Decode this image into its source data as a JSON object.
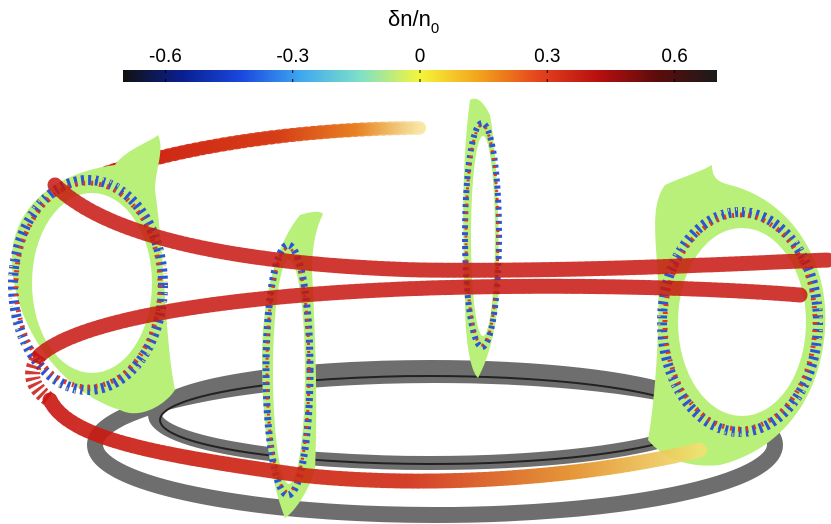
{
  "chart_data": {
    "type": "heatmap",
    "colorbar": {
      "title_main": "δn/n",
      "title_sub": "0",
      "range": [
        -0.7,
        0.7
      ],
      "ticks": [
        -0.6,
        -0.3,
        0,
        0.3,
        0.6
      ],
      "tick_labels": [
        "-0.6",
        "-0.3",
        "0",
        "0.3",
        "0.6"
      ],
      "colormap": [
        "#111111",
        "#0a1f8f",
        "#1a48e0",
        "#3fa8ee",
        "#7fe0c8",
        "#f4f53a",
        "#f3a21c",
        "#e4431d",
        "#b80f0f",
        "#5b0c0c",
        "#1a1a1a"
      ]
    },
    "poloidal_cross_sections": 4,
    "field_line_colors": [
      "#cc1a12",
      "#e06a1a",
      "#f0d040"
    ],
    "vessel_color": "#6e6e6e",
    "fill_color": "#b8f07a"
  }
}
